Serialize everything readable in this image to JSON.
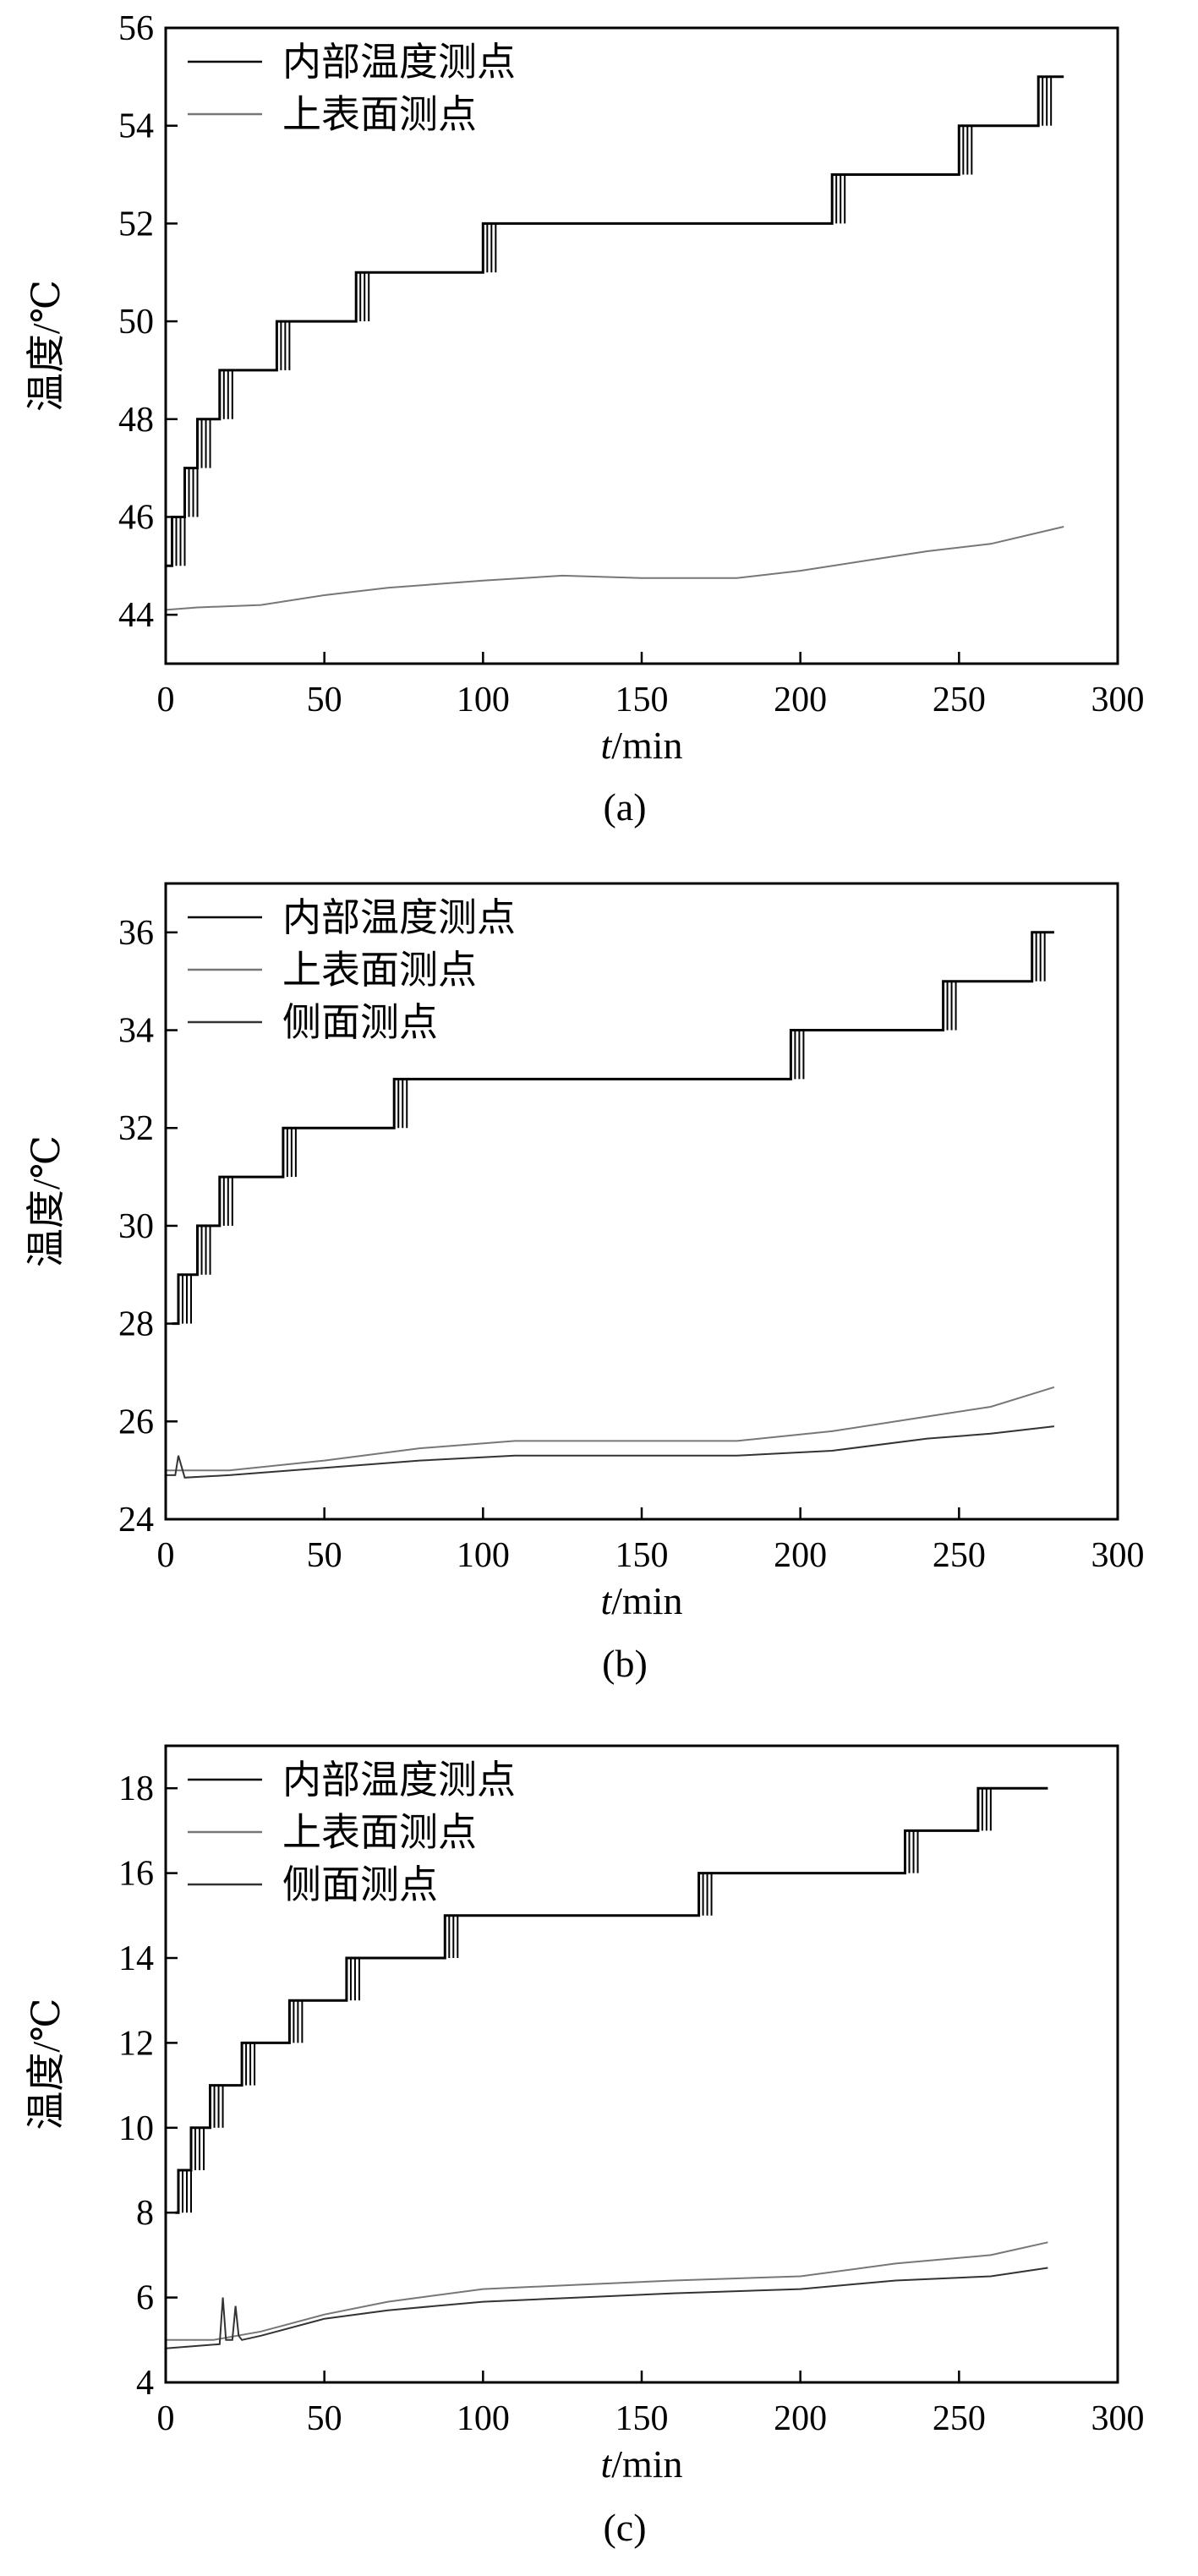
{
  "chart_data": [
    {
      "type": "line",
      "caption": "(a)",
      "xlabel_italic": "t",
      "xlabel_unit": "/min",
      "ylabel": "温度/℃",
      "xlim": [
        0,
        300
      ],
      "ylim": [
        43,
        56
      ],
      "xticks": [
        0,
        50,
        100,
        150,
        200,
        250,
        300
      ],
      "yticks": [
        44,
        46,
        48,
        50,
        52,
        54,
        56
      ],
      "legend_position": "top-left",
      "series": [
        {
          "name": "内部温度测点",
          "color": "#000000",
          "interpolation": "step",
          "x": [
            0,
            2,
            6,
            10,
            17,
            35,
            60,
            100,
            210,
            250,
            275,
            283
          ],
          "y": [
            45,
            46,
            47,
            48,
            49,
            50,
            51,
            52,
            53,
            54,
            55,
            55
          ]
        },
        {
          "name": "上表面测点",
          "color": "#777777",
          "interpolation": "linear",
          "x": [
            0,
            10,
            30,
            50,
            70,
            100,
            125,
            150,
            180,
            200,
            220,
            240,
            260,
            283
          ],
          "y": [
            44.1,
            44.15,
            44.2,
            44.4,
            44.55,
            44.7,
            44.8,
            44.75,
            44.75,
            44.9,
            45.1,
            45.3,
            45.45,
            45.8
          ]
        }
      ]
    },
    {
      "type": "line",
      "caption": "(b)",
      "xlabel_italic": "t",
      "xlabel_unit": "/min",
      "ylabel": "温度/℃",
      "xlim": [
        0,
        300
      ],
      "ylim": [
        24,
        37
      ],
      "xticks": [
        0,
        50,
        100,
        150,
        200,
        250,
        300
      ],
      "yticks": [
        24,
        26,
        28,
        30,
        32,
        34,
        36
      ],
      "legend_position": "top-left",
      "series": [
        {
          "name": "内部温度测点",
          "color": "#000000",
          "interpolation": "step",
          "x": [
            2,
            4,
            10,
            17,
            37,
            72,
            197,
            245,
            273,
            280
          ],
          "y": [
            28,
            29,
            30,
            31,
            32,
            33,
            34,
            35,
            36,
            36
          ]
        },
        {
          "name": "上表面测点",
          "color": "#777777",
          "interpolation": "linear",
          "x": [
            0,
            20,
            50,
            80,
            110,
            150,
            180,
            210,
            240,
            260,
            280
          ],
          "y": [
            25.0,
            25.0,
            25.2,
            25.45,
            25.6,
            25.6,
            25.6,
            25.8,
            26.1,
            26.3,
            26.7
          ]
        },
        {
          "name": "侧面测点",
          "color": "#333333",
          "interpolation": "linear",
          "x": [
            0,
            3,
            4,
            6,
            20,
            50,
            80,
            110,
            150,
            180,
            210,
            240,
            260,
            280
          ],
          "y": [
            24.9,
            24.9,
            25.3,
            24.85,
            24.9,
            25.05,
            25.2,
            25.3,
            25.3,
            25.3,
            25.4,
            25.65,
            25.75,
            25.9
          ]
        }
      ]
    },
    {
      "type": "line",
      "caption": "(c)",
      "xlabel_italic": "t",
      "xlabel_unit": "/min",
      "ylabel": "温度/℃",
      "xlim": [
        0,
        300
      ],
      "ylim": [
        4,
        19
      ],
      "xticks": [
        0,
        50,
        100,
        150,
        200,
        250,
        300
      ],
      "yticks": [
        4,
        6,
        8,
        10,
        12,
        14,
        16,
        18
      ],
      "legend_position": "top-left",
      "series": [
        {
          "name": "内部温度测点",
          "color": "#000000",
          "interpolation": "step",
          "x": [
            3,
            4,
            8,
            14,
            24,
            39,
            57,
            88,
            168,
            233,
            256,
            278
          ],
          "y": [
            8,
            9,
            10,
            11,
            12,
            13,
            14,
            15,
            16,
            17,
            18,
            18
          ]
        },
        {
          "name": "上表面测点",
          "color": "#777777",
          "interpolation": "linear",
          "x": [
            0,
            15,
            30,
            50,
            70,
            100,
            130,
            160,
            200,
            230,
            260,
            278
          ],
          "y": [
            5.0,
            5.0,
            5.2,
            5.6,
            5.9,
            6.2,
            6.3,
            6.4,
            6.5,
            6.8,
            7.0,
            7.3
          ]
        },
        {
          "name": "侧面测点",
          "color": "#333333",
          "interpolation": "linear",
          "x": [
            0,
            17,
            18,
            19,
            21,
            22,
            23,
            24,
            30,
            50,
            70,
            100,
            130,
            160,
            200,
            230,
            260,
            278
          ],
          "y": [
            4.8,
            4.9,
            6.0,
            5.0,
            5.0,
            5.8,
            5.1,
            5.0,
            5.1,
            5.5,
            5.7,
            5.9,
            6.0,
            6.1,
            6.2,
            6.4,
            6.5,
            6.7
          ]
        }
      ]
    }
  ]
}
